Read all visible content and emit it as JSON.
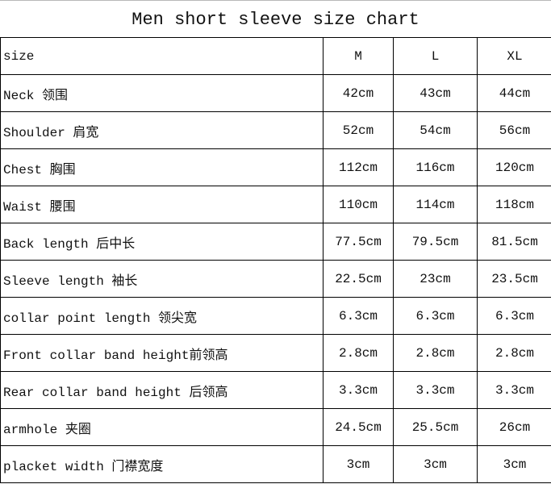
{
  "title": "Men short sleeve size chart",
  "header": {
    "label": "size",
    "sizes": [
      "M",
      "L",
      "XL"
    ]
  },
  "rows": [
    {
      "label": "Neck  领围",
      "values": [
        "42cm",
        "43cm",
        "44cm"
      ]
    },
    {
      "label": "Shoulder 肩宽",
      "values": [
        "52cm",
        "54cm",
        "56cm"
      ]
    },
    {
      "label": "Chest 胸围",
      "values": [
        "112cm",
        "116cm",
        "120cm"
      ]
    },
    {
      "label": "Waist 腰围",
      "values": [
        "110cm",
        "114cm",
        "118cm"
      ]
    },
    {
      "label": "Back length 后中长",
      "values": [
        "77.5cm",
        "79.5cm",
        "81.5cm"
      ]
    },
    {
      "label": "Sleeve length 袖长",
      "values": [
        "22.5cm",
        "23cm",
        "23.5cm"
      ]
    },
    {
      "label": "collar point length 领尖宽",
      "values": [
        "6.3cm",
        "6.3cm",
        "6.3cm"
      ]
    },
    {
      "label": "Front collar band height前领高",
      "values": [
        "2.8cm",
        "2.8cm",
        "2.8cm"
      ]
    },
    {
      "label": "Rear collar band height 后领高",
      "values": [
        "3.3cm",
        "3.3cm",
        "3.3cm"
      ]
    },
    {
      "label": "armhole 夹圈",
      "values": [
        "24.5cm",
        "25.5cm",
        "26cm"
      ]
    },
    {
      "label": "placket width 门襟宽度",
      "values": [
        "3cm",
        "3cm",
        "3cm"
      ]
    }
  ]
}
